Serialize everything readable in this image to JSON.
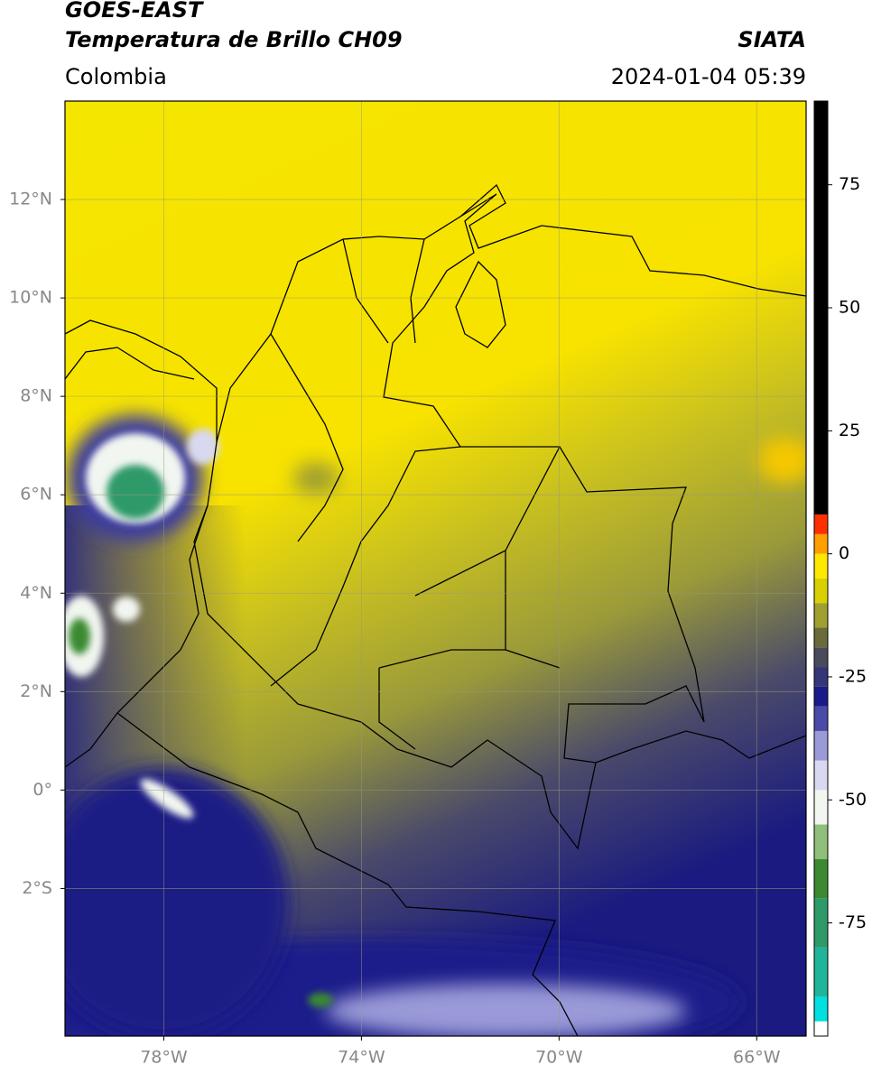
{
  "header": {
    "title": "GOES-EAST",
    "subtitle": "Temperatura de Brillo CH09",
    "source": "SIATA",
    "region": "Colombia",
    "datetime": "2024-01-04 05:39"
  },
  "map": {
    "xlim": [
      -80,
      -65
    ],
    "ylim": [
      -5,
      14
    ],
    "xticks": [
      {
        "value": -78,
        "label": "78°W"
      },
      {
        "value": -74,
        "label": "74°W"
      },
      {
        "value": -70,
        "label": "70°W"
      },
      {
        "value": -66,
        "label": "66°W"
      }
    ],
    "yticks": [
      {
        "value": -2,
        "label": "2°S"
      },
      {
        "value": 0,
        "label": "0°"
      },
      {
        "value": 2,
        "label": "2°N"
      },
      {
        "value": 4,
        "label": "4°N"
      },
      {
        "value": 6,
        "label": "6°N"
      },
      {
        "value": 8,
        "label": "8°N"
      },
      {
        "value": 10,
        "label": "10°N"
      },
      {
        "value": 12,
        "label": "12°N"
      }
    ],
    "grid": true
  },
  "colorbar": {
    "lim": [
      -98,
      92
    ],
    "ticks": [
      -75,
      -50,
      -25,
      0,
      25,
      50,
      75
    ],
    "colormap": [
      {
        "value": -98,
        "color": "#ffffff"
      },
      {
        "value": -95,
        "color": "#00e0e0"
      },
      {
        "value": -90,
        "color": "#1fb59a"
      },
      {
        "value": -80,
        "color": "#2e9a6a"
      },
      {
        "value": -70,
        "color": "#3b8a30"
      },
      {
        "value": -62,
        "color": "#8fbf7a"
      },
      {
        "value": -55,
        "color": "#f2f6f0"
      },
      {
        "value": -48,
        "color": "#d8d8f0"
      },
      {
        "value": -42,
        "color": "#9a9ad8"
      },
      {
        "value": -36,
        "color": "#4a4aa8"
      },
      {
        "value": -31,
        "color": "#1a1a8a"
      },
      {
        "value": -27,
        "color": "#35357a"
      },
      {
        "value": -23,
        "color": "#4a4a5a"
      },
      {
        "value": -19,
        "color": "#6a6a3a"
      },
      {
        "value": -15,
        "color": "#a0a030"
      },
      {
        "value": -10,
        "color": "#d8d000"
      },
      {
        "value": -5,
        "color": "#ffe800"
      },
      {
        "value": 0,
        "color": "#ffa000"
      },
      {
        "value": 4,
        "color": "#ff3000"
      },
      {
        "value": 8,
        "color": "#000000"
      }
    ]
  }
}
